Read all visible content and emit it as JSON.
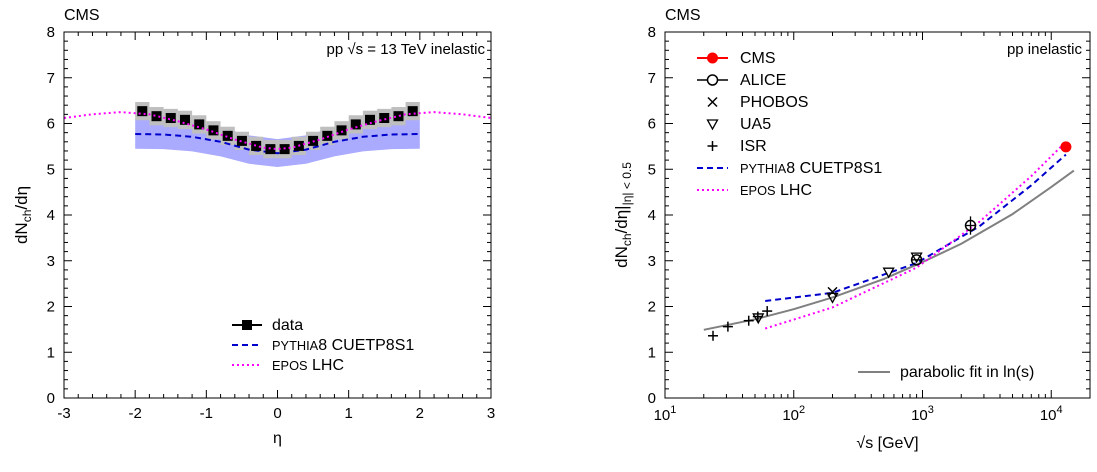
{
  "chart_data": [
    {
      "type": "scatter",
      "experiment_label": "CMS",
      "title": "pp √s = 13 TeV inelastic",
      "xlabel": "η",
      "ylabel": "dN_ch/dη",
      "xlim": [
        -3,
        3
      ],
      "ylim": [
        0,
        8
      ],
      "xticks": [
        "-3",
        "-2",
        "-1",
        "0",
        "1",
        "2",
        "3"
      ],
      "yticks": [
        "0",
        "1",
        "2",
        "3",
        "4",
        "5",
        "6",
        "7",
        "8"
      ],
      "legend": [
        {
          "smallcaps": "",
          "label": "data"
        },
        {
          "smallcaps": "PYTHIA",
          "label": "8 CUETP8S1"
        },
        {
          "smallcaps": "EPOS",
          "label": " LHC"
        }
      ],
      "legend_position": "bottom-center",
      "series": [
        {
          "name": "data",
          "color": "#000000",
          "x": [
            -1.9,
            -1.7,
            -1.5,
            -1.3,
            -1.1,
            -0.9,
            -0.7,
            -0.5,
            -0.3,
            -0.1,
            0.1,
            0.3,
            0.5,
            0.7,
            0.9,
            1.1,
            1.3,
            1.5,
            1.7,
            1.9
          ],
          "y": [
            6.27,
            6.16,
            6.12,
            6.08,
            5.98,
            5.85,
            5.73,
            5.62,
            5.51,
            5.44,
            5.44,
            5.51,
            5.62,
            5.73,
            5.85,
            5.98,
            6.08,
            6.12,
            6.16,
            6.27
          ],
          "syst_error": [
            0.2,
            0.2,
            0.2,
            0.2,
            0.2,
            0.2,
            0.2,
            0.2,
            0.2,
            0.2,
            0.2,
            0.2,
            0.2,
            0.2,
            0.2,
            0.2,
            0.2,
            0.2,
            0.2,
            0.2
          ]
        },
        {
          "name": "PYTHIA8 CUETP8S1",
          "color": "#0000cc",
          "x": [
            -2.0,
            -1.6,
            -1.2,
            -0.8,
            -0.4,
            0.0,
            0.4,
            0.8,
            1.2,
            1.6,
            2.0
          ],
          "y": [
            5.77,
            5.76,
            5.71,
            5.6,
            5.43,
            5.35,
            5.43,
            5.6,
            5.71,
            5.76,
            5.77
          ],
          "band_low": [
            5.45,
            5.44,
            5.39,
            5.28,
            5.12,
            5.05,
            5.12,
            5.28,
            5.39,
            5.44,
            5.45
          ],
          "band_high": [
            6.1,
            6.09,
            6.03,
            5.92,
            5.74,
            5.66,
            5.74,
            5.92,
            6.03,
            6.09,
            6.1
          ]
        },
        {
          "name": "EPOS LHC",
          "color": "#ff00ff",
          "x": [
            -3.0,
            -2.6,
            -2.2,
            -1.8,
            -1.4,
            -1.0,
            -0.6,
            -0.2,
            0.0,
            0.2,
            0.6,
            1.0,
            1.4,
            1.8,
            2.2,
            2.6,
            3.0
          ],
          "y": [
            6.12,
            6.2,
            6.25,
            6.2,
            6.05,
            5.87,
            5.65,
            5.47,
            5.44,
            5.47,
            5.65,
            5.87,
            6.05,
            6.2,
            6.25,
            6.2,
            6.12
          ]
        }
      ]
    },
    {
      "type": "scatter",
      "experiment_label": "CMS",
      "title": "pp inelastic",
      "xlabel": "√s [GeV]",
      "ylabel": "dN_ch/dη|_|η| < 0.5",
      "x_scale": "log",
      "xlim": [
        10,
        20000
      ],
      "ylim": [
        0,
        8
      ],
      "xticks": [
        {
          "value": 10,
          "base": "10",
          "exp": "1"
        },
        {
          "value": 100,
          "base": "10",
          "exp": "2"
        },
        {
          "value": 1000,
          "base": "10",
          "exp": "3"
        },
        {
          "value": 10000,
          "base": "10",
          "exp": "4"
        }
      ],
      "yticks": [
        "0",
        "1",
        "2",
        "3",
        "4",
        "5",
        "6",
        "7",
        "8"
      ],
      "legend": [
        {
          "smallcaps": "",
          "label": "CMS"
        },
        {
          "smallcaps": "",
          "label": "ALICE"
        },
        {
          "smallcaps": "",
          "label": "PHOBOS"
        },
        {
          "smallcaps": "",
          "label": "UA5"
        },
        {
          "smallcaps": "",
          "label": "ISR"
        },
        {
          "smallcaps": "PYTHIA",
          "label": "8 CUETP8S1"
        },
        {
          "smallcaps": "EPOS",
          "label": " LHC"
        }
      ],
      "legend_position": "top-left",
      "fit_legend": "parabolic fit in ln(s)",
      "series": [
        {
          "name": "CMS",
          "color": "#ff0000",
          "x": [
            13000
          ],
          "y": [
            5.49
          ]
        },
        {
          "name": "ALICE",
          "color": "#000000",
          "x": [
            900,
            2360
          ],
          "y": [
            3.02,
            3.77
          ],
          "error": [
            0.0,
            0.2
          ]
        },
        {
          "name": "PHOBOS",
          "color": "#000000",
          "x": [
            200
          ],
          "y": [
            2.32
          ]
        },
        {
          "name": "UA5",
          "color": "#000000",
          "x": [
            53,
            200,
            546,
            900
          ],
          "y": [
            1.75,
            2.2,
            2.75,
            3.08
          ]
        },
        {
          "name": "ISR",
          "color": "#000000",
          "x": [
            23.6,
            30.8,
            44.7,
            52.6,
            62.2
          ],
          "y": [
            1.36,
            1.56,
            1.69,
            1.78,
            1.9
          ]
        },
        {
          "name": "PYTHIA8 CUETP8S1",
          "color": "#0000cc",
          "x": [
            60,
            200,
            900,
            2760,
            7000,
            13000
          ],
          "y": [
            2.12,
            2.3,
            2.95,
            3.75,
            4.65,
            5.32
          ]
        },
        {
          "name": "EPOS LHC",
          "color": "#ff00ff",
          "x": [
            60,
            200,
            900,
            2760,
            7000,
            13000
          ],
          "y": [
            1.52,
            1.98,
            2.85,
            3.85,
            4.85,
            5.6
          ]
        },
        {
          "name": "parabolic fit in ln(s)",
          "color": "#808080",
          "x": [
            20,
            50,
            100,
            200,
            500,
            1000,
            2000,
            5000,
            10000,
            15000
          ],
          "y": [
            1.49,
            1.72,
            1.94,
            2.2,
            2.6,
            2.97,
            3.37,
            4.02,
            4.61,
            4.97
          ]
        }
      ]
    }
  ]
}
